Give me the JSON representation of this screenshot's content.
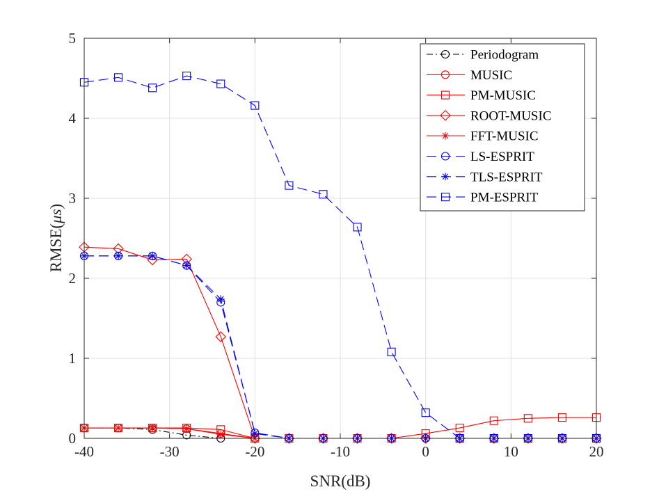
{
  "chart_data": {
    "type": "line",
    "title": "",
    "xlabel": "SNR(dB)",
    "ylabel_main": "RMSE(",
    "ylabel_symbol": "μs",
    "ylabel_close": ")",
    "xlim": [
      -40,
      20
    ],
    "ylim": [
      0,
      5
    ],
    "grid": true,
    "legend_position": "top-right",
    "x": [
      -40,
      -36,
      -32,
      -28,
      -24,
      -20,
      -16,
      -12,
      -8,
      -4,
      0,
      4,
      8,
      12,
      16,
      20
    ],
    "xticks": [
      -40,
      -30,
      -20,
      -10,
      0,
      10,
      20
    ],
    "xtick_labels": [
      "-40",
      "-30",
      "-20",
      "-10",
      "0",
      "10",
      "20"
    ],
    "yticks": [
      0,
      1,
      2,
      3,
      4,
      5
    ],
    "ytick_labels": [
      "0",
      "1",
      "2",
      "3",
      "4",
      "5"
    ],
    "series": [
      {
        "name": "Periodogram",
        "color": "#000000",
        "dash": "dashdot",
        "marker": "circle",
        "values": [
          0.13,
          0.13,
          0.11,
          0.04,
          0.0,
          0.0,
          0.0,
          0.0,
          0.0,
          0.0,
          0.0,
          0.0,
          0.0,
          0.0,
          0.0,
          0.0
        ]
      },
      {
        "name": "MUSIC",
        "color": "#ff0000",
        "dash": "solid",
        "marker": "circle",
        "values": [
          0.13,
          0.13,
          0.13,
          0.12,
          0.06,
          0.0,
          0.0,
          0.0,
          0.0,
          0.0,
          0.0,
          0.0,
          0.0,
          0.0,
          0.0,
          0.0
        ]
      },
      {
        "name": "PM-MUSIC",
        "color": "#ff0000",
        "dash": "solid",
        "marker": "square",
        "values": [
          0.13,
          0.13,
          0.13,
          0.13,
          0.11,
          0.0,
          0.0,
          0.0,
          0.0,
          0.0,
          0.06,
          0.13,
          0.22,
          0.25,
          0.26,
          0.26
        ]
      },
      {
        "name": "ROOT-MUSIC",
        "color": "#ff0000",
        "dash": "solid",
        "marker": "diamond",
        "values": [
          2.39,
          2.37,
          2.23,
          2.24,
          1.27,
          0.0,
          0.0,
          0.0,
          0.0,
          0.0,
          0.0,
          0.0,
          0.0,
          0.0,
          0.0,
          0.0
        ]
      },
      {
        "name": "FFT-MUSIC",
        "color": "#ff0000",
        "dash": "solid",
        "marker": "asterisk",
        "values": [
          0.13,
          0.13,
          0.13,
          0.12,
          0.05,
          0.0,
          0.0,
          0.0,
          0.0,
          0.0,
          0.0,
          0.0,
          0.0,
          0.0,
          0.0,
          0.0
        ]
      },
      {
        "name": "LS-ESPRIT",
        "color": "#0000ff",
        "dash": "dashed",
        "marker": "circle",
        "values": [
          2.28,
          2.28,
          2.28,
          2.16,
          1.7,
          0.07,
          0.0,
          0.0,
          0.0,
          0.0,
          0.0,
          0.0,
          0.0,
          0.0,
          0.0,
          0.0
        ]
      },
      {
        "name": "TLS-ESPRIT",
        "color": "#0000ff",
        "dash": "dashed",
        "marker": "asterisk",
        "values": [
          2.28,
          2.28,
          2.28,
          2.16,
          1.74,
          0.06,
          0.0,
          0.0,
          0.0,
          0.0,
          0.0,
          0.0,
          0.0,
          0.0,
          0.0,
          0.0
        ]
      },
      {
        "name": "PM-ESPRIT",
        "color": "#0000ff",
        "dash": "dashed",
        "marker": "square",
        "values": [
          4.45,
          4.51,
          4.38,
          4.53,
          4.43,
          4.16,
          3.16,
          3.05,
          2.64,
          1.08,
          0.32,
          0.0,
          0.0,
          0.0,
          0.0,
          0.0
        ]
      }
    ]
  }
}
